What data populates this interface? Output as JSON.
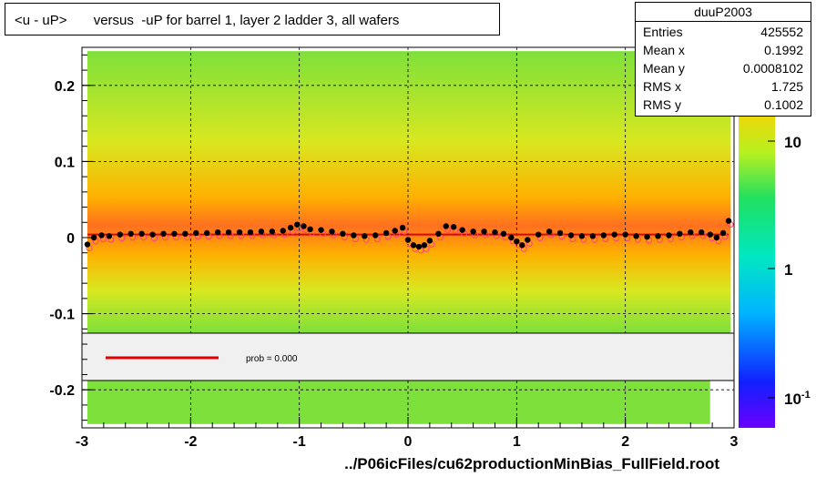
{
  "title": "<u - uP>       versus  -uP for barrel 1, layer 2 ladder 3, all wafers",
  "stats": {
    "name": "duuP2003",
    "rows": [
      {
        "label": "Entries",
        "value": "425552"
      },
      {
        "label": "Mean x",
        "value": "0.1992"
      },
      {
        "label": "Mean y",
        "value": "0.0008102"
      },
      {
        "label": "RMS x",
        "value": "1.725"
      },
      {
        "label": "RMS y",
        "value": "0.1002"
      }
    ]
  },
  "footer": "../P06icFiles/cu62productionMinBias_FullField.root",
  "legend": {
    "label": "prob = 0.000"
  },
  "colors": {
    "fit_line": "#e00000",
    "profile": "#000000",
    "profile_alt": "#ff4080"
  },
  "chart_data": {
    "type": "heatmap",
    "xlim": [
      -3,
      3
    ],
    "ylim": [
      -0.25,
      0.25
    ],
    "x_ticks": [
      "-3",
      "-2",
      "-1",
      "0",
      "1",
      "2",
      "3"
    ],
    "y_ticks": [
      "-0.2",
      "-0.1",
      "0",
      "0.1",
      "0.2"
    ],
    "z_ticks": [
      "10",
      "1",
      "10-1"
    ],
    "grid": true,
    "fit_y": 0.004,
    "profile": [
      {
        "x": -2.95,
        "y": -0.009
      },
      {
        "x": -2.89,
        "y": 0.0
      },
      {
        "x": -2.82,
        "y": 0.003
      },
      {
        "x": -2.75,
        "y": 0.002
      },
      {
        "x": -2.65,
        "y": 0.004
      },
      {
        "x": -2.55,
        "y": 0.005
      },
      {
        "x": -2.45,
        "y": 0.005
      },
      {
        "x": -2.35,
        "y": 0.004
      },
      {
        "x": -2.25,
        "y": 0.005
      },
      {
        "x": -2.15,
        "y": 0.005
      },
      {
        "x": -2.05,
        "y": 0.005
      },
      {
        "x": -1.95,
        "y": 0.006
      },
      {
        "x": -1.85,
        "y": 0.006
      },
      {
        "x": -1.75,
        "y": 0.007
      },
      {
        "x": -1.65,
        "y": 0.007
      },
      {
        "x": -1.55,
        "y": 0.007
      },
      {
        "x": -1.45,
        "y": 0.007
      },
      {
        "x": -1.35,
        "y": 0.008
      },
      {
        "x": -1.25,
        "y": 0.008
      },
      {
        "x": -1.15,
        "y": 0.009
      },
      {
        "x": -1.08,
        "y": 0.013
      },
      {
        "x": -1.02,
        "y": 0.017
      },
      {
        "x": -0.96,
        "y": 0.015
      },
      {
        "x": -0.9,
        "y": 0.011
      },
      {
        "x": -0.8,
        "y": 0.01
      },
      {
        "x": -0.7,
        "y": 0.008
      },
      {
        "x": -0.6,
        "y": 0.005
      },
      {
        "x": -0.5,
        "y": 0.003
      },
      {
        "x": -0.4,
        "y": 0.002
      },
      {
        "x": -0.3,
        "y": 0.003
      },
      {
        "x": -0.2,
        "y": 0.006
      },
      {
        "x": -0.12,
        "y": 0.009
      },
      {
        "x": -0.05,
        "y": 0.013
      },
      {
        "x": 0.0,
        "y": -0.003
      },
      {
        "x": 0.05,
        "y": -0.01
      },
      {
        "x": 0.1,
        "y": -0.012
      },
      {
        "x": 0.15,
        "y": -0.01
      },
      {
        "x": 0.2,
        "y": -0.004
      },
      {
        "x": 0.28,
        "y": 0.005
      },
      {
        "x": 0.35,
        "y": 0.015
      },
      {
        "x": 0.42,
        "y": 0.014
      },
      {
        "x": 0.5,
        "y": 0.01
      },
      {
        "x": 0.6,
        "y": 0.008
      },
      {
        "x": 0.7,
        "y": 0.008
      },
      {
        "x": 0.8,
        "y": 0.007
      },
      {
        "x": 0.88,
        "y": 0.005
      },
      {
        "x": 0.95,
        "y": 0.0
      },
      {
        "x": 1.0,
        "y": -0.005
      },
      {
        "x": 1.05,
        "y": -0.01
      },
      {
        "x": 1.1,
        "y": -0.003
      },
      {
        "x": 1.2,
        "y": 0.004
      },
      {
        "x": 1.3,
        "y": 0.008
      },
      {
        "x": 1.4,
        "y": 0.006
      },
      {
        "x": 1.5,
        "y": 0.003
      },
      {
        "x": 1.6,
        "y": 0.002
      },
      {
        "x": 1.7,
        "y": 0.002
      },
      {
        "x": 1.8,
        "y": 0.003
      },
      {
        "x": 1.9,
        "y": 0.004
      },
      {
        "x": 2.0,
        "y": 0.004
      },
      {
        "x": 2.1,
        "y": 0.002
      },
      {
        "x": 2.2,
        "y": 0.001
      },
      {
        "x": 2.3,
        "y": 0.002
      },
      {
        "x": 2.4,
        "y": 0.003
      },
      {
        "x": 2.5,
        "y": 0.005
      },
      {
        "x": 2.6,
        "y": 0.007
      },
      {
        "x": 2.7,
        "y": 0.007
      },
      {
        "x": 2.78,
        "y": 0.004
      },
      {
        "x": 2.84,
        "y": 0.0
      },
      {
        "x": 2.9,
        "y": 0.006
      },
      {
        "x": 2.95,
        "y": 0.022
      }
    ]
  }
}
